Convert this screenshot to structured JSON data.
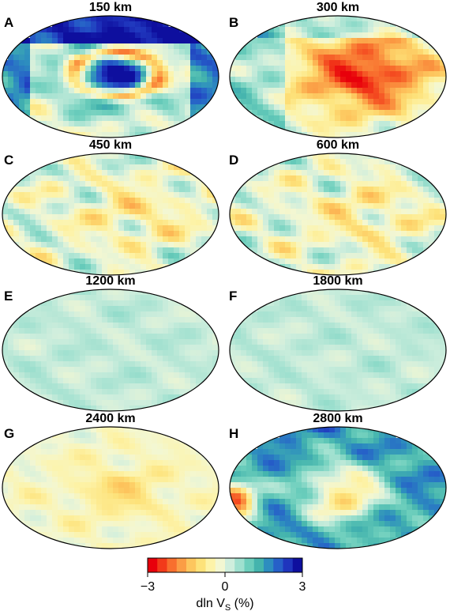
{
  "panels": [
    {
      "letter": "A",
      "title": "150 km",
      "pattern": "strong_pacific_ring"
    },
    {
      "letter": "B",
      "title": "300 km",
      "pattern": "strong_pacific_slow"
    },
    {
      "letter": "C",
      "title": "450 km",
      "pattern": "moderate_mixed"
    },
    {
      "letter": "D",
      "title": "600 km",
      "pattern": "moderate_mixed"
    },
    {
      "letter": "E",
      "title": "1200 km",
      "pattern": "weak"
    },
    {
      "letter": "F",
      "title": "1800 km",
      "pattern": "weak"
    },
    {
      "letter": "G",
      "title": "2400 km",
      "pattern": "weak_warm"
    },
    {
      "letter": "H",
      "title": "2800 km",
      "pattern": "lower_mantle_llsvp"
    }
  ],
  "colorbar": {
    "min_label": "−3",
    "mid_label": "0",
    "max_label": "3",
    "axis_label": "dln V",
    "axis_sub": "S",
    "axis_unit": " (%)",
    "colors": [
      "#e8000b",
      "#f23a1a",
      "#f86f2e",
      "#fb9d45",
      "#fdc65e",
      "#fde27a",
      "#fdf3a8",
      "#f3f7d2",
      "#cfeedd",
      "#9fe0cf",
      "#6ccebc",
      "#44b4ad",
      "#2d8dbf",
      "#2660c8",
      "#1f35bd",
      "#0e0f9e"
    ]
  }
}
